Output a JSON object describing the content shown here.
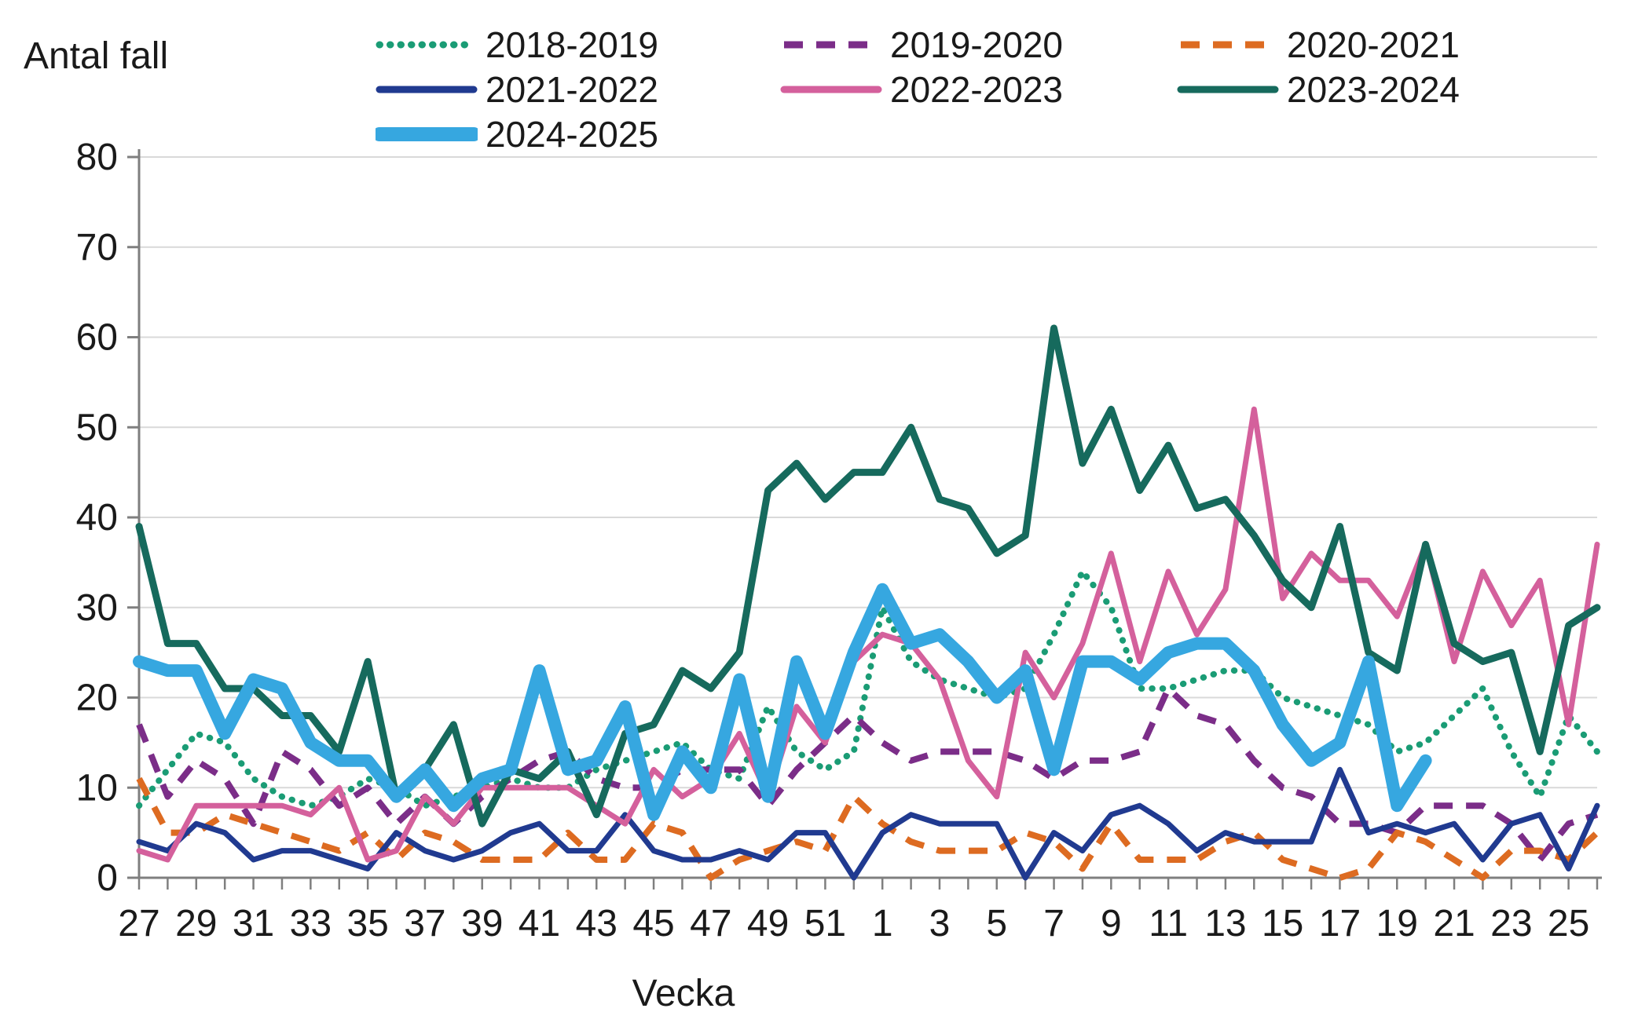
{
  "chart_data": {
    "type": "line",
    "title": "",
    "ylabel": "Antal fall",
    "xlabel": "Vecka",
    "ylim": [
      0,
      80
    ],
    "y_ticks": [
      0,
      10,
      20,
      30,
      40,
      50,
      60,
      70,
      80
    ],
    "x_label_every": 2,
    "grid": true,
    "legend_position": "top",
    "categories": [
      "27",
      "28",
      "29",
      "30",
      "31",
      "32",
      "33",
      "34",
      "35",
      "36",
      "37",
      "38",
      "39",
      "40",
      "41",
      "42",
      "43",
      "44",
      "45",
      "46",
      "47",
      "48",
      "49",
      "50",
      "51",
      "52",
      "1",
      "2",
      "3",
      "4",
      "5",
      "6",
      "7",
      "8",
      "9",
      "10",
      "11",
      "12",
      "13",
      "14",
      "15",
      "16",
      "17",
      "18",
      "19",
      "20",
      "21",
      "22",
      "23",
      "24",
      "25",
      "26"
    ],
    "series": [
      {
        "name": "2018-2019",
        "color": "#1a9c75",
        "style": "dotted",
        "width": 8,
        "values": [
          8,
          12,
          16,
          15,
          11,
          9,
          8,
          9,
          11,
          10,
          8,
          9,
          10,
          11,
          10,
          10,
          12,
          13,
          14,
          15,
          12,
          11,
          19,
          14,
          12,
          14,
          30,
          24,
          22,
          21,
          20,
          21,
          27,
          34,
          30,
          21,
          21,
          22,
          23,
          23,
          20,
          19,
          18,
          17,
          14,
          15,
          18,
          21,
          14,
          9,
          18,
          14
        ]
      },
      {
        "name": "2019-2020",
        "color": "#7b2d88",
        "style": "dashed",
        "width": 8,
        "values": [
          17,
          9,
          13,
          11,
          6,
          14,
          12,
          8,
          10,
          6,
          9,
          6,
          9,
          11,
          13,
          14,
          11,
          10,
          10,
          12,
          12,
          12,
          8,
          12,
          15,
          18,
          15,
          13,
          14,
          14,
          14,
          13,
          11,
          13,
          13,
          14,
          21,
          18,
          17,
          13,
          10,
          9,
          6,
          6,
          5,
          8,
          8,
          8,
          6,
          2,
          6,
          7
        ]
      },
      {
        "name": "2020-2021",
        "color": "#dd6b21",
        "style": "dashed",
        "width": 8,
        "values": [
          11,
          5,
          5,
          7,
          6,
          5,
          4,
          3,
          5,
          2,
          5,
          4,
          2,
          2,
          2,
          5,
          2,
          2,
          6,
          5,
          0,
          2,
          3,
          4,
          3,
          9,
          6,
          4,
          3,
          3,
          3,
          5,
          4,
          1,
          6,
          2,
          2,
          2,
          4,
          5,
          2,
          1,
          0,
          1,
          5,
          4,
          2,
          0,
          3,
          3,
          2,
          5
        ]
      },
      {
        "name": "2021-2022",
        "color": "#203a90",
        "style": "solid",
        "width": 7,
        "values": [
          4,
          3,
          6,
          5,
          2,
          3,
          3,
          2,
          1,
          5,
          3,
          2,
          3,
          5,
          6,
          3,
          3,
          7,
          3,
          2,
          2,
          3,
          2,
          5,
          5,
          0,
          5,
          7,
          6,
          6,
          6,
          0,
          5,
          3,
          7,
          8,
          6,
          3,
          5,
          4,
          4,
          4,
          12,
          5,
          6,
          5,
          6,
          2,
          6,
          7,
          1,
          8
        ]
      },
      {
        "name": "2022-2023",
        "color": "#d4609c",
        "style": "solid",
        "width": 7,
        "values": [
          3,
          2,
          8,
          8,
          8,
          8,
          7,
          10,
          2,
          3,
          9,
          6,
          10,
          10,
          10,
          10,
          8,
          6,
          12,
          9,
          11,
          16,
          9,
          19,
          15,
          24,
          27,
          26,
          22,
          13,
          9,
          25,
          20,
          26,
          36,
          24,
          34,
          27,
          32,
          52,
          31,
          36,
          33,
          33,
          29,
          37,
          24,
          34,
          28,
          33,
          17,
          37
        ]
      },
      {
        "name": "2023-2024",
        "color": "#166a5d",
        "style": "solid",
        "width": 9,
        "values": [
          39,
          26,
          26,
          21,
          21,
          18,
          18,
          14,
          24,
          9,
          12,
          17,
          6,
          12,
          11,
          14,
          7,
          16,
          17,
          23,
          21,
          25,
          43,
          46,
          42,
          45,
          45,
          50,
          42,
          41,
          36,
          38,
          61,
          46,
          52,
          43,
          48,
          41,
          42,
          38,
          33,
          30,
          39,
          25,
          23,
          37,
          26,
          24,
          25,
          14,
          28,
          30
        ]
      },
      {
        "name": "2024-2025",
        "color": "#36a7e0",
        "style": "solid",
        "width": 16,
        "values": [
          24,
          23,
          23,
          16,
          22,
          21,
          15,
          13,
          13,
          9,
          12,
          8,
          11,
          12,
          23,
          12,
          13,
          19,
          7,
          14,
          10,
          22,
          9,
          24,
          16,
          25,
          32,
          26,
          27,
          24,
          20,
          23,
          12,
          24,
          24,
          22,
          25,
          26,
          26,
          23,
          17,
          13,
          15,
          24,
          8,
          13,
          null,
          null,
          null,
          null,
          null,
          null
        ]
      }
    ]
  },
  "legend": {
    "rows": [
      [
        "2018-2019",
        "2019-2020",
        "2020-2021"
      ],
      [
        "2021-2022",
        "2022-2023",
        "2023-2024"
      ],
      [
        "2024-2025"
      ]
    ]
  },
  "styles": {
    "background": "#ffffff",
    "text_color": "#1a1a1a",
    "grid_color": "#d9d9d9",
    "axis_color": "#7f7f7f"
  }
}
